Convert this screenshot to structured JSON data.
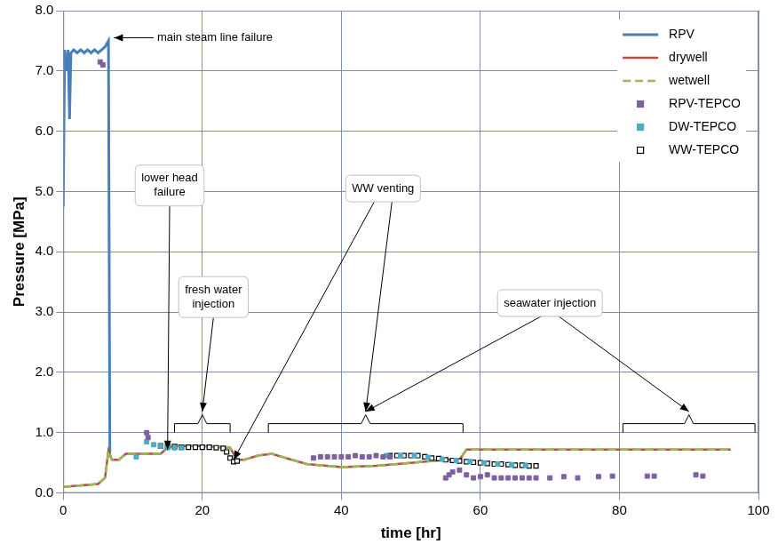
{
  "chart_data": {
    "type": "line",
    "x_label": "time [hr]",
    "y_label": "Pressure [MPa]",
    "xlim": [
      0,
      100
    ],
    "xticks": [
      0,
      20,
      40,
      60,
      80,
      100
    ],
    "ylim": [
      0,
      8
    ],
    "yticks": [
      {
        "value": 0,
        "label": "0.0"
      },
      {
        "value": 1,
        "label": "1.0"
      },
      {
        "value": 2,
        "label": "2.0"
      },
      {
        "value": 3,
        "label": "3.0"
      },
      {
        "value": 4,
        "label": "4.0"
      },
      {
        "value": 5,
        "label": "5.0"
      },
      {
        "value": 6,
        "label": "6.0"
      },
      {
        "value": 7,
        "label": "7.0"
      },
      {
        "value": 8,
        "label": "8.0"
      }
    ],
    "grid": true,
    "legend": "upper right",
    "annotations": [
      "main steam line failure",
      "lower head failure",
      "fresh water injection",
      "WW venting",
      "seawater injection"
    ],
    "series": [
      {
        "name": "RPV",
        "type": "line",
        "color": "#4a7ebb",
        "line_style": "solid",
        "marker": "none",
        "x": [
          0,
          0.2,
          0.5,
          0.7,
          0.9,
          1.1,
          1.5,
          2,
          2.5,
          3,
          3.5,
          4,
          4.5,
          5,
          5.5,
          6,
          6.5,
          6.7
        ],
        "values": [
          4.75,
          7.35,
          7.0,
          7.35,
          6.2,
          7.3,
          7.35,
          7.3,
          7.35,
          7.3,
          7.35,
          7.3,
          7.35,
          7.3,
          7.35,
          7.4,
          7.5,
          0.6
        ]
      },
      {
        "name": "drywell",
        "type": "line",
        "color": "#be4b48",
        "line_style": "solid",
        "marker": "none",
        "x": [
          0,
          5,
          6,
          6.5,
          7,
          8,
          9,
          10,
          14,
          15,
          16,
          20,
          24,
          25,
          26,
          28,
          30,
          32,
          35,
          40,
          45,
          50,
          55,
          57,
          58,
          70,
          80,
          90,
          96
        ],
        "values": [
          0.1,
          0.15,
          0.25,
          0.7,
          0.55,
          0.55,
          0.65,
          0.65,
          0.65,
          0.75,
          0.78,
          0.78,
          0.75,
          0.55,
          0.55,
          0.62,
          0.65,
          0.58,
          0.48,
          0.43,
          0.45,
          0.5,
          0.55,
          0.55,
          0.72,
          0.72,
          0.72,
          0.72,
          0.72
        ]
      },
      {
        "name": "wetwell",
        "type": "line",
        "color": "#98b954",
        "line_style": "dashed",
        "marker": "none",
        "x": [
          0,
          5,
          6,
          6.5,
          7,
          8,
          9,
          10,
          14,
          15,
          16,
          20,
          24,
          25,
          26,
          28,
          30,
          32,
          35,
          40,
          45,
          50,
          55,
          57,
          58,
          70,
          80,
          90,
          96
        ],
        "values": [
          0.1,
          0.15,
          0.25,
          0.7,
          0.55,
          0.55,
          0.65,
          0.65,
          0.65,
          0.75,
          0.78,
          0.78,
          0.75,
          0.55,
          0.55,
          0.62,
          0.65,
          0.58,
          0.48,
          0.43,
          0.45,
          0.5,
          0.55,
          0.55,
          0.72,
          0.72,
          0.72,
          0.72,
          0.72
        ]
      },
      {
        "name": "RPV-TEPCO",
        "type": "scatter",
        "color": "#7d60a0",
        "line_style": "none",
        "marker": "square",
        "x": [
          5.3,
          5.7,
          12,
          12.2,
          36,
          37,
          38,
          39,
          40,
          41,
          42,
          43,
          44,
          45,
          46,
          47,
          55,
          55.5,
          56,
          57,
          58,
          59,
          60,
          61,
          62,
          63,
          64,
          65,
          66,
          67,
          68,
          70,
          72,
          74,
          77,
          79,
          84,
          85,
          91,
          92
        ],
        "values": [
          7.15,
          7.1,
          1.0,
          0.92,
          0.58,
          0.6,
          0.6,
          0.6,
          0.6,
          0.6,
          0.62,
          0.6,
          0.6,
          0.62,
          0.6,
          0.6,
          0.25,
          0.3,
          0.35,
          0.38,
          0.3,
          0.25,
          0.27,
          0.3,
          0.25,
          0.25,
          0.25,
          0.25,
          0.25,
          0.25,
          0.25,
          0.25,
          0.27,
          0.25,
          0.27,
          0.28,
          0.28,
          0.28,
          0.3,
          0.28
        ]
      },
      {
        "name": "DW-TEPCO",
        "type": "scatter",
        "color": "#4bacc6",
        "line_style": "none",
        "marker": "square",
        "x": [
          10.5,
          12,
          13,
          14,
          15,
          16,
          17,
          46.5,
          48.5,
          50.5,
          52.5,
          54.5,
          56.5,
          58.5,
          60.5,
          62.5,
          64.5,
          66.5
        ],
        "values": [
          0.6,
          0.85,
          0.8,
          0.78,
          0.75,
          0.75,
          0.75,
          0.62,
          0.62,
          0.62,
          0.59,
          0.56,
          0.54,
          0.52,
          0.5,
          0.48,
          0.47,
          0.46
        ]
      },
      {
        "name": "WW-TEPCO",
        "type": "scatter",
        "color": "#000000",
        "line_style": "none",
        "marker": "square_open",
        "x": [
          14,
          15,
          16,
          17,
          18,
          19,
          20,
          21,
          22,
          23,
          23.5,
          24,
          24.5,
          25,
          47,
          48,
          49,
          50,
          51,
          52,
          53,
          54,
          55,
          56,
          57,
          58,
          59,
          60,
          61,
          62,
          63,
          64,
          65,
          66,
          67,
          68
        ],
        "values": [
          0.78,
          0.77,
          0.77,
          0.76,
          0.76,
          0.76,
          0.76,
          0.76,
          0.75,
          0.74,
          0.68,
          0.58,
          0.52,
          0.53,
          0.62,
          0.62,
          0.62,
          0.62,
          0.62,
          0.6,
          0.58,
          0.57,
          0.55,
          0.54,
          0.53,
          0.52,
          0.51,
          0.5,
          0.49,
          0.48,
          0.48,
          0.47,
          0.46,
          0.46,
          0.45,
          0.45
        ]
      }
    ]
  }
}
